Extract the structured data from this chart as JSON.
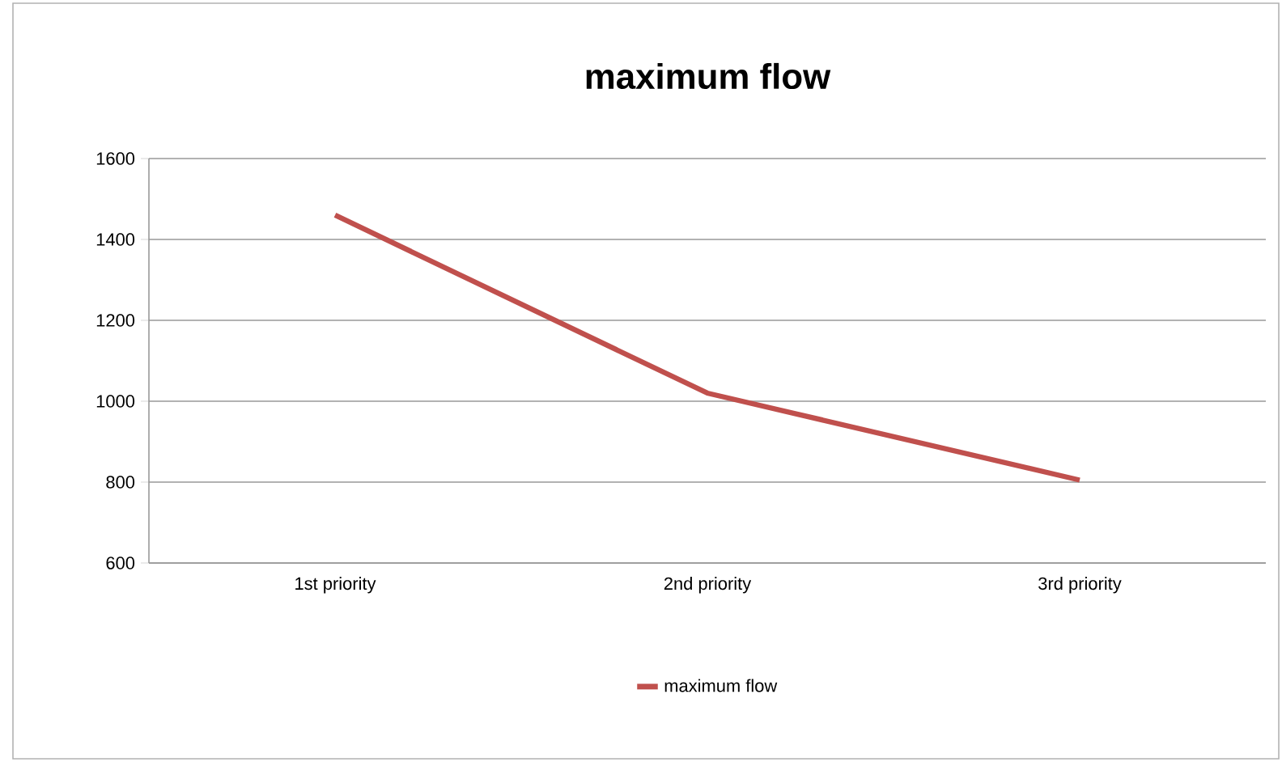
{
  "chart_data": {
    "type": "line",
    "title": "maximum flow",
    "categories": [
      "1st priority",
      "2nd priority",
      "3rd priority"
    ],
    "series": [
      {
        "name": "maximum flow",
        "color": "#c0504d",
        "values": [
          1460,
          1020,
          805
        ]
      }
    ],
    "ylim": [
      600,
      1600
    ],
    "yticks": [
      600,
      800,
      1000,
      1200,
      1400,
      1600
    ],
    "grid": "y",
    "legend": "bottom"
  }
}
